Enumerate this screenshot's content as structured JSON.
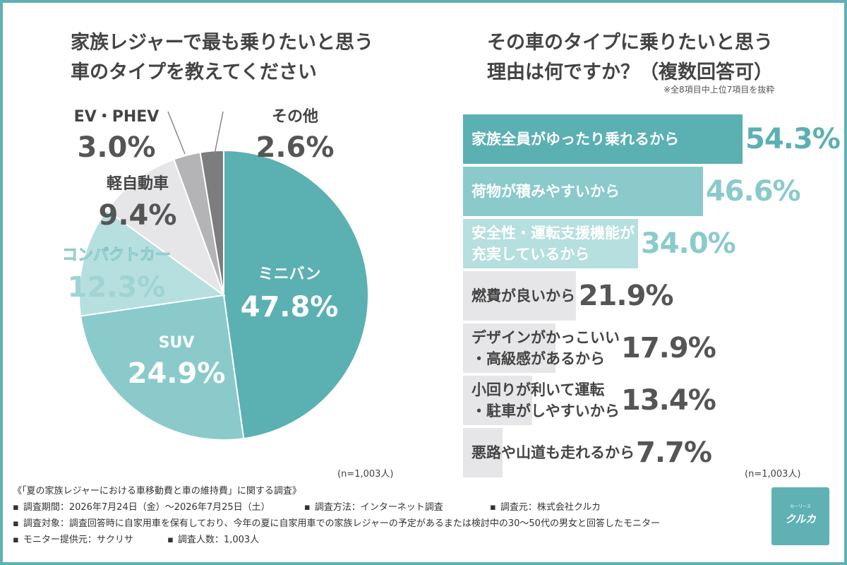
{
  "left": {
    "title_line1": "家族レジャーで最も乗りたいと思う",
    "title_line2": "車のタイプを教えてください",
    "n_label": "(n=1,003人)"
  },
  "right": {
    "title_line1": "その車のタイプに乗りたいと思う",
    "title_line2": "理由は何ですか？（複数回答可）",
    "note": "※全8項目中上位7項目を抜粋",
    "n_label": "(n=1,003人)"
  },
  "footer": {
    "heading": "《「夏の家族レジャーにおける車移動費と車の維持費」に関する調査》",
    "period": "調査期間：2026年7月24日（金）〜2026年7月25日（土）",
    "method": "調査方法：インターネット調査",
    "source": "調査元：株式会社クルカ",
    "target": "調査対象：調査回答時に自家用車を保有しており、今年の夏に自家用車での家族レジャーの予定があるまたは検討中の30〜50代の男女と回答したモニター",
    "provider": "モニター提供元：サクリサ",
    "count": "調査人数：1,003人"
  },
  "logo": {
    "small": "カーリース",
    "text": "クルカ"
  },
  "chart_data": [
    {
      "type": "pie",
      "slices": [
        {
          "label": "ミニバン",
          "value": 47.8,
          "value_text": "47.8%",
          "color": "#5bb0b2"
        },
        {
          "label": "SUV",
          "value": 24.9,
          "value_text": "24.9%",
          "color": "#8acacb"
        },
        {
          "label": "コンパクトカー",
          "value": 12.3,
          "value_text": "12.3%",
          "color": "#b6dfdf"
        },
        {
          "label": "軽自動車",
          "value": 9.4,
          "value_text": "9.4%",
          "color": "#e6e6e8"
        },
        {
          "label": "EV・PHEV",
          "value": 3.0,
          "value_text": "3.0%",
          "color": "#b4b4b7"
        },
        {
          "label": "その他",
          "value": 2.6,
          "value_text": "2.6%",
          "color": "#7d7d80"
        }
      ]
    },
    {
      "type": "bar",
      "orientation": "horizontal",
      "categories": [
        [
          "家族全員がゆったり乗れるから"
        ],
        [
          "荷物が積みやすいから"
        ],
        [
          "安全性・運転支援機能が",
          "充実しているから"
        ],
        [
          "燃費が良いから"
        ],
        [
          "デザインがかっこいい",
          "・高級感があるから"
        ],
        [
          "小回りが利いて運転",
          "・駐車がしやすいから"
        ],
        [
          "悪路や山道も走れるから"
        ]
      ],
      "values": [
        54.3,
        46.6,
        34.0,
        21.9,
        17.9,
        13.4,
        7.7
      ],
      "value_labels": [
        "54.3%",
        "46.6%",
        "34.0%",
        "21.9%",
        "17.9%",
        "13.4%",
        "7.7%"
      ],
      "colors": [
        "#5bb0b2",
        "#8acacb",
        "#b6dfdf",
        "#e6e6e8",
        "#e6e6e8",
        "#e6e6e8",
        "#e6e6e8"
      ],
      "text_colors": [
        "#ffffff",
        "#ffffff",
        "#ffffff",
        "#444444",
        "#444444",
        "#444444",
        "#444444"
      ],
      "value_colors": [
        "#5bb0b2",
        "#8acacb",
        "#8acacb",
        "#555555",
        "#555555",
        "#555555",
        "#555555"
      ]
    }
  ]
}
